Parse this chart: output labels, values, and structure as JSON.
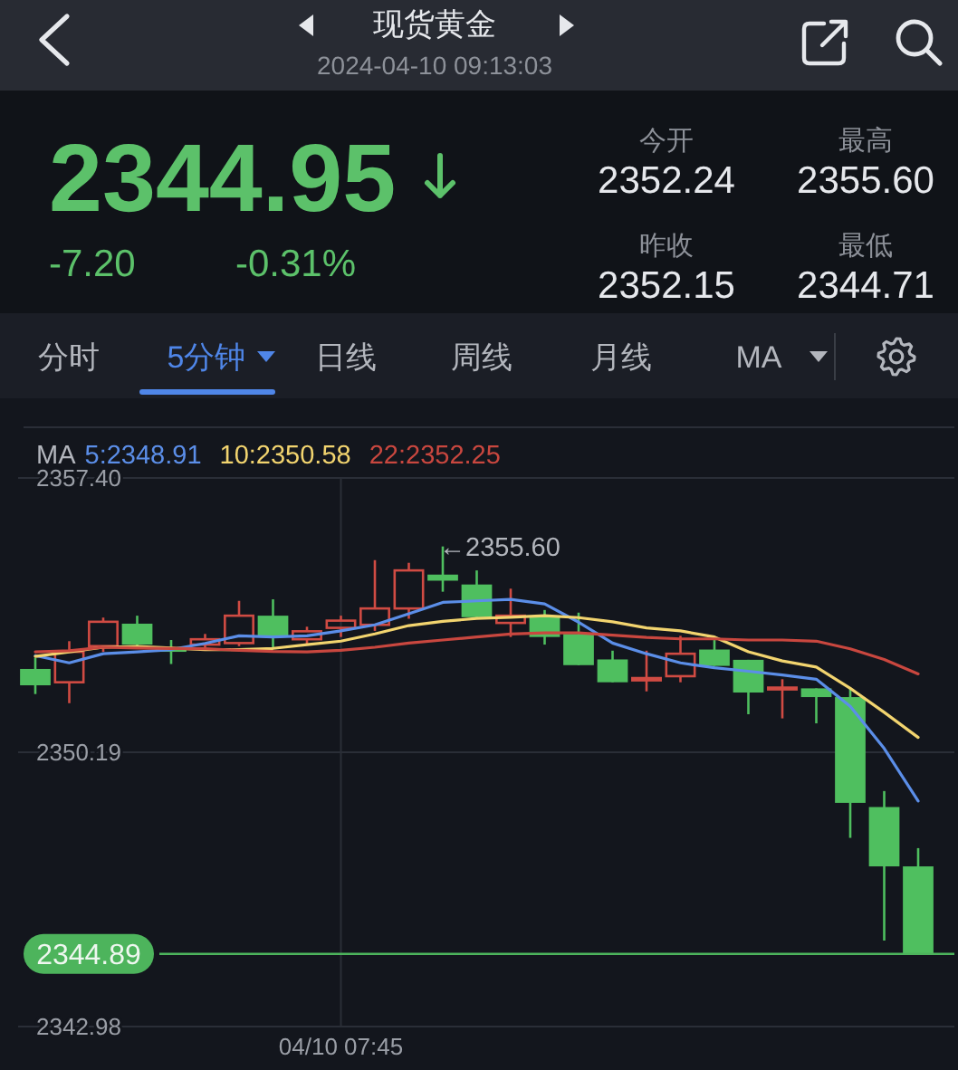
{
  "chart_data": {
    "type": "candlestick",
    "title": "现货黄金",
    "subtitle": "2024-04-10 09:13:03",
    "categories": [
      null,
      null,
      null,
      null,
      null,
      null,
      null,
      null,
      null,
      "04/10 07:45",
      null,
      null,
      null,
      null,
      null,
      null,
      null,
      null,
      null,
      null,
      null,
      null,
      null,
      null,
      null,
      null,
      null
    ],
    "ohlc": [
      [
        2352.38,
        2352.67,
        2351.72,
        2351.95
      ],
      [
        2352.03,
        2353.11,
        2351.48,
        2352.83
      ],
      [
        2352.98,
        2353.73,
        2352.83,
        2353.62
      ],
      [
        2353.57,
        2353.78,
        2352.98,
        2353.02
      ],
      [
        2352.95,
        2353.14,
        2352.51,
        2352.83
      ],
      [
        2353.02,
        2353.3,
        2352.92,
        2353.16
      ],
      [
        2353.06,
        2354.17,
        2352.98,
        2353.78
      ],
      [
        2353.78,
        2354.21,
        2352.91,
        2353.22
      ],
      [
        2353.16,
        2353.49,
        2353.02,
        2353.37
      ],
      [
        2353.46,
        2353.78,
        2353.22,
        2353.65
      ],
      [
        2353.54,
        2355.24,
        2353.38,
        2353.97
      ],
      [
        2353.97,
        2355.17,
        2353.7,
        2354.97
      ],
      [
        2354.86,
        2355.6,
        2354.41,
        2354.7
      ],
      [
        2354.6,
        2354.97,
        2353.7,
        2353.74
      ],
      [
        2353.59,
        2354.49,
        2353.22,
        2353.78
      ],
      [
        2353.78,
        2353.93,
        2353.02,
        2353.22
      ],
      [
        2353.3,
        2353.86,
        2352.48,
        2352.48
      ],
      [
        2352.63,
        2352.86,
        2352.03,
        2352.03
      ],
      [
        2352.08,
        2352.86,
        2351.79,
        2352.14
      ],
      [
        2352.19,
        2353.25,
        2352.03,
        2352.78
      ],
      [
        2352.89,
        2353.14,
        2352.46,
        2352.46
      ],
      [
        2352.62,
        2352.62,
        2351.19,
        2351.76
      ],
      [
        2351.85,
        2352.11,
        2351.08,
        2351.89
      ],
      [
        2351.87,
        2351.87,
        2350.95,
        2351.64
      ],
      [
        2351.64,
        2351.87,
        2347.94,
        2348.86
      ],
      [
        2348.75,
        2349.17,
        2345.24,
        2347.19
      ],
      [
        2347.19,
        2347.67,
        2344.89,
        2344.89
      ]
    ],
    "colors": [
      "#4fbf5f",
      "#d04b43",
      "#d04b43",
      "#4fbf5f",
      "#4fbf5f",
      "#d04b43",
      "#d04b43",
      "#4fbf5f",
      "#d04b43",
      "#d04b43",
      "#d04b43",
      "#d04b43",
      "#4fbf5f",
      "#4fbf5f",
      "#d04b43",
      "#4fbf5f",
      "#4fbf5f",
      "#4fbf5f",
      "#d04b43",
      "#d04b43",
      "#4fbf5f",
      "#4fbf5f",
      "#d04b43",
      "#4fbf5f",
      "#4fbf5f",
      "#4fbf5f",
      "#4fbf5f"
    ],
    "series": [
      {
        "name": "5:2348.91",
        "type": "line",
        "color": "#5b8ee8",
        "values": [
          2352.73,
          2352.54,
          2352.78,
          2352.83,
          2352.89,
          2353.05,
          2353.25,
          2353.22,
          2353.25,
          2353.38,
          2353.54,
          2353.83,
          2354.13,
          2354.17,
          2354.21,
          2354.09,
          2353.61,
          2353.06,
          2352.78,
          2352.54,
          2352.41,
          2352.32,
          2352.22,
          2352.11,
          2351.4,
          2350.29,
          2348.91
        ]
      },
      {
        "name": "10:2350.58",
        "type": "line",
        "color": "#f2d46f",
        "values": [
          2352.71,
          2352.83,
          2352.95,
          2352.97,
          2352.93,
          2352.89,
          2352.89,
          2352.92,
          2353.02,
          2353.11,
          2353.3,
          2353.52,
          2353.63,
          2353.71,
          2353.74,
          2353.78,
          2353.73,
          2353.62,
          2353.46,
          2353.38,
          2353.22,
          2352.83,
          2352.59,
          2352.43,
          2351.87,
          2351.24,
          2350.58
        ]
      },
      {
        "name": "22:2352.25",
        "type": "line",
        "color": "#c9473f",
        "values": [
          2352.83,
          2352.86,
          2352.95,
          2352.93,
          2352.92,
          2352.91,
          2352.87,
          2352.84,
          2352.83,
          2352.87,
          2352.95,
          2353.06,
          2353.14,
          2353.22,
          2353.3,
          2353.33,
          2353.33,
          2353.27,
          2353.21,
          2353.17,
          2353.17,
          2353.14,
          2353.14,
          2353.11,
          2352.91,
          2352.63,
          2352.25
        ]
      }
    ],
    "legend_title": "MA",
    "legend": "top left",
    "ylim": [
      2342.98,
      2357.4
    ],
    "yticks": [
      2342.98,
      2350.19,
      {
        "value": 2357.4,
        "label": "2357.40"
      }
    ],
    "grid": true,
    "ref_lines": [
      {
        "axis": "y",
        "value": 2344.89,
        "label": "2344.89",
        "color": "#4db45c"
      }
    ],
    "annotations": [
      "←2355.60",
      "2344.95",
      "-7.20",
      "-0.31%",
      "今开",
      "2352.24",
      "最高",
      "2355.60",
      "昨收",
      "2352.15",
      "最低",
      "2344.71",
      "分时",
      "5分钟",
      "日线",
      "周线",
      "月线",
      "MA"
    ]
  }
}
